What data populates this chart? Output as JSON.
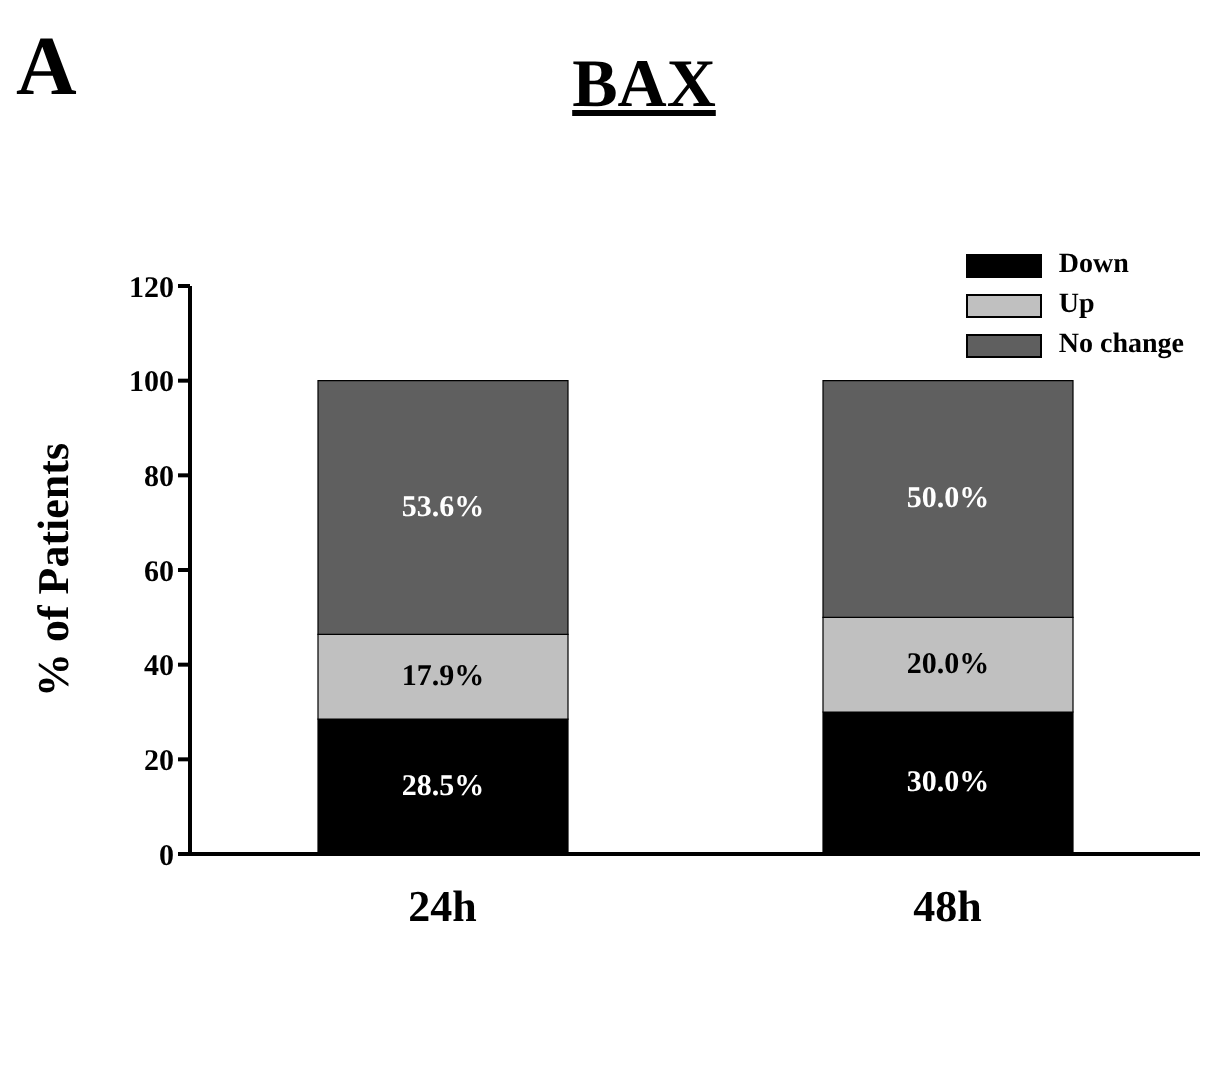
{
  "chart_data": {
    "type": "bar",
    "title": "BAX",
    "ylabel": "% of Patients",
    "annotations": [
      "A"
    ],
    "categories": [
      "24h",
      "48h"
    ],
    "stacked": true,
    "legend": "top right",
    "ylim": [
      0,
      120
    ],
    "yticks": [
      0,
      20,
      40,
      60,
      80,
      100,
      120
    ],
    "grid": false,
    "series": [
      {
        "name": "Down",
        "color": "#000000",
        "values": [
          28.5,
          30.0
        ],
        "value_labels": [
          "28.5%",
          "30.0%"
        ]
      },
      {
        "name": "Up",
        "color": "#c0c0c0",
        "values": [
          17.9,
          20.0
        ],
        "value_labels": [
          "17.9%",
          "20.0%"
        ]
      },
      {
        "name": "No change",
        "color": "#5f5f5f",
        "values": [
          53.6,
          50.0
        ],
        "value_labels": [
          "53.6%",
          "50.0%"
        ]
      }
    ]
  }
}
